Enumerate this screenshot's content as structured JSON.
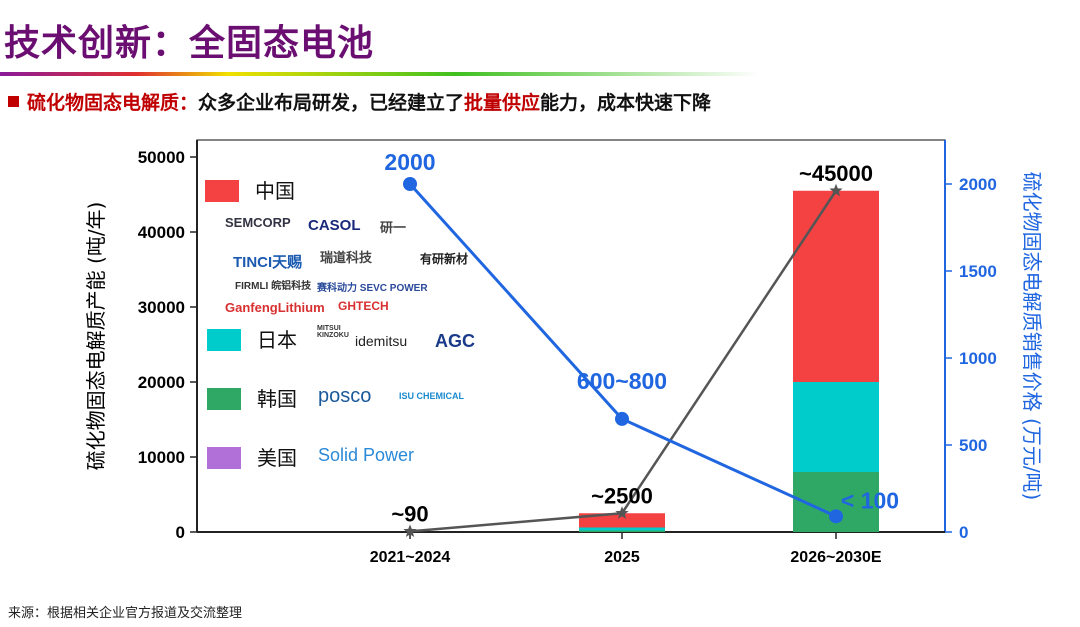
{
  "header": {
    "title": "技术创新：全固态电池",
    "subtitle_lead": "硫化物固态电解质：",
    "subtitle_mid": "众多企业布局研发，已经建立了",
    "subtitle_highlight": "批量供应",
    "subtitle_tail": "能力，成本快速下降"
  },
  "source": "来源：根据相关企业官方报道及交流整理",
  "legend": {
    "china": {
      "label": "中国",
      "color": "#f44242",
      "logos": [
        "SEMCORP",
        "CASOL",
        "研一",
        "TINCI天赐",
        "瑞道科技",
        "有研新材",
        "FIRMLI 皖铝科技",
        "赛科动力 SEVC POWER",
        "GanfengLithium",
        "GHTECH"
      ]
    },
    "japan": {
      "label": "日本",
      "color": "#00cccc",
      "logos": [
        "MITSUI KINZOKU",
        "idemitsu",
        "AGC"
      ]
    },
    "korea": {
      "label": "韩国",
      "color": "#2fa866",
      "logos": [
        "posco",
        "ISU CHEMICAL"
      ]
    },
    "usa": {
      "label": "美国",
      "color": "#b070d8",
      "logos": [
        "Solid Power"
      ]
    }
  },
  "chart_data": {
    "type": "bar",
    "categories": [
      "2021~2024",
      "2025",
      "2026~2030E"
    ],
    "ylabel": "硫化物固态电解质产能 (吨/年)",
    "y2label": "硫化物固态电解质销售价格 (万元/吨)",
    "ylim": [
      0,
      50000
    ],
    "y2lim": [
      0,
      2000
    ],
    "yticks": [
      0,
      10000,
      20000,
      30000,
      40000,
      50000
    ],
    "y2ticks": [
      0,
      500,
      1000,
      1500,
      2000
    ],
    "series": [
      {
        "name": "韩国",
        "color": "#2fa866",
        "values": [
          0,
          200,
          8000
        ]
      },
      {
        "name": "日本",
        "color": "#00cccc",
        "values": [
          0,
          400,
          12000
        ]
      },
      {
        "name": "中国",
        "color": "#f44242",
        "values": [
          90,
          1900,
          25500
        ]
      },
      {
        "name": "美国",
        "color": "#b070d8",
        "values": [
          0,
          0,
          0
        ]
      }
    ],
    "capacity_line": {
      "color": "#555555",
      "values": [
        90,
        2500,
        45500
      ],
      "labels": [
        "~90",
        "~2500",
        "~45000"
      ]
    },
    "price_line": {
      "color": "#1f66e0",
      "values": [
        2000,
        650,
        90
      ],
      "labels": [
        "2000",
        "600~800",
        "< 100"
      ]
    },
    "grid": false
  }
}
